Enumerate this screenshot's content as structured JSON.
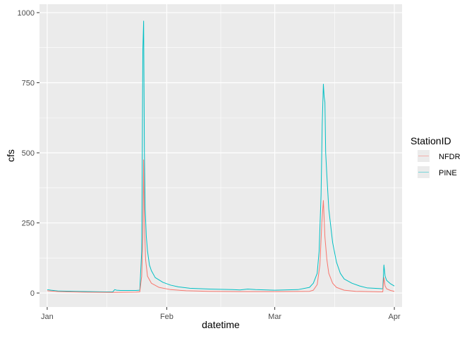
{
  "chart_data": {
    "type": "line",
    "title": "",
    "xlabel": "datetime",
    "ylabel": "cfs",
    "x_tick_labels": [
      "Jan",
      "Feb",
      "Mar",
      "Apr"
    ],
    "y_tick_labels": [
      "0",
      "250",
      "500",
      "750",
      "1000"
    ],
    "y_ticks": [
      0,
      250,
      500,
      750,
      1000
    ],
    "xlim": [
      "2021-12-30",
      "2022-04-03"
    ],
    "ylim": [
      -50,
      1030
    ],
    "grid": true,
    "legend": {
      "title": "StationID",
      "position": "right"
    },
    "series": [
      {
        "name": "PINE",
        "color": "#00BFC4",
        "points": [
          [
            "2022-01-01",
            12
          ],
          [
            "2022-01-02",
            10
          ],
          [
            "2022-01-04",
            7
          ],
          [
            "2022-01-08",
            6
          ],
          [
            "2022-01-12",
            5
          ],
          [
            "2022-01-16",
            4
          ],
          [
            "2022-01-18",
            4
          ],
          [
            "2022-01-18.5",
            12
          ],
          [
            "2022-01-19",
            10
          ],
          [
            "2022-01-20",
            9
          ],
          [
            "2022-01-24",
            9
          ],
          [
            "2022-01-25",
            10
          ],
          [
            "2022-01-25.5",
            150
          ],
          [
            "2022-01-25.8",
            870
          ],
          [
            "2022-01-26",
            970
          ],
          [
            "2022-01-26.2",
            500
          ],
          [
            "2022-01-26.4",
            300
          ],
          [
            "2022-01-26.7",
            200
          ],
          [
            "2022-01-27",
            150
          ],
          [
            "2022-01-27.5",
            100
          ],
          [
            "2022-01-28",
            80
          ],
          [
            "2022-01-29",
            55
          ],
          [
            "2022-01-31",
            38
          ],
          [
            "2022-02-02",
            28
          ],
          [
            "2022-02-04",
            22
          ],
          [
            "2022-02-07",
            17
          ],
          [
            "2022-02-12",
            14
          ],
          [
            "2022-02-18",
            12
          ],
          [
            "2022-02-20",
            11
          ],
          [
            "2022-02-22",
            14
          ],
          [
            "2022-02-24",
            12
          ],
          [
            "2022-03-01",
            10
          ],
          [
            "2022-03-07",
            12
          ],
          [
            "2022-03-10",
            20
          ],
          [
            "2022-03-11",
            35
          ],
          [
            "2022-03-12",
            70
          ],
          [
            "2022-03-12.5",
            150
          ],
          [
            "2022-03-13",
            350
          ],
          [
            "2022-03-13.3",
            600
          ],
          [
            "2022-03-13.6",
            745
          ],
          [
            "2022-03-13.8",
            700
          ],
          [
            "2022-03-14",
            680
          ],
          [
            "2022-03-14.2",
            500
          ],
          [
            "2022-03-14.5",
            420
          ],
          [
            "2022-03-15",
            300
          ],
          [
            "2022-03-16",
            180
          ],
          [
            "2022-03-17",
            110
          ],
          [
            "2022-03-18",
            70
          ],
          [
            "2022-03-19",
            50
          ],
          [
            "2022-03-21",
            35
          ],
          [
            "2022-03-23",
            25
          ],
          [
            "2022-03-25",
            18
          ],
          [
            "2022-03-28",
            16
          ],
          [
            "2022-03-29",
            15
          ],
          [
            "2022-03-29.3",
            100
          ],
          [
            "2022-03-29.6",
            60
          ],
          [
            "2022-03-30",
            45
          ],
          [
            "2022-03-31",
            33
          ],
          [
            "2022-04-01",
            25
          ]
        ]
      },
      {
        "name": "NFDR",
        "color": "#F8766D",
        "points": [
          [
            "2022-01-01",
            8
          ],
          [
            "2022-01-04",
            5
          ],
          [
            "2022-01-10",
            3
          ],
          [
            "2022-01-18",
            2
          ],
          [
            "2022-01-24",
            3
          ],
          [
            "2022-01-25",
            4
          ],
          [
            "2022-01-25.5",
            60
          ],
          [
            "2022-01-25.8",
            200
          ],
          [
            "2022-01-26",
            475
          ],
          [
            "2022-01-26.2",
            250
          ],
          [
            "2022-01-26.5",
            120
          ],
          [
            "2022-01-27",
            60
          ],
          [
            "2022-01-28",
            35
          ],
          [
            "2022-01-30",
            20
          ],
          [
            "2022-02-02",
            12
          ],
          [
            "2022-02-06",
            8
          ],
          [
            "2022-02-12",
            6
          ],
          [
            "2022-02-20",
            5
          ],
          [
            "2022-03-01",
            5
          ],
          [
            "2022-03-10",
            6
          ],
          [
            "2022-03-11",
            10
          ],
          [
            "2022-03-12",
            30
          ],
          [
            "2022-03-12.7",
            100
          ],
          [
            "2022-03-13.2",
            250
          ],
          [
            "2022-03-13.6",
            330
          ],
          [
            "2022-03-14",
            200
          ],
          [
            "2022-03-14.5",
            120
          ],
          [
            "2022-03-15",
            70
          ],
          [
            "2022-03-16",
            35
          ],
          [
            "2022-03-17",
            20
          ],
          [
            "2022-03-19",
            10
          ],
          [
            "2022-03-22",
            6
          ],
          [
            "2022-03-28",
            4
          ],
          [
            "2022-03-29",
            4
          ],
          [
            "2022-03-29.3",
            55
          ],
          [
            "2022-03-29.6",
            25
          ],
          [
            "2022-03-30",
            15
          ],
          [
            "2022-03-31",
            9
          ],
          [
            "2022-04-01",
            6
          ]
        ]
      }
    ]
  }
}
